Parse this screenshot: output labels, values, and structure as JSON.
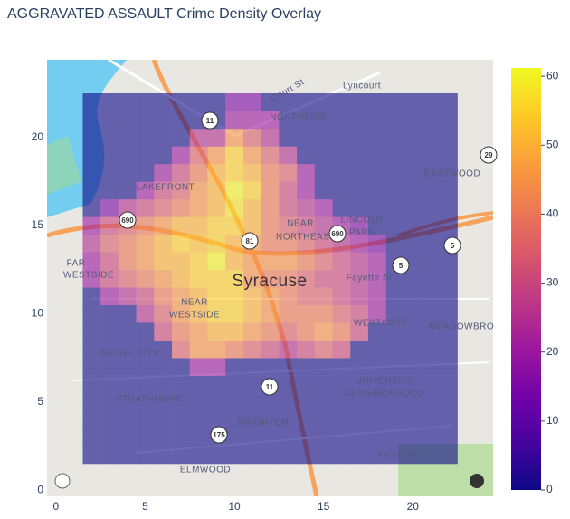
{
  "chart_data": {
    "type": "heatmap",
    "title": "AGGRAVATED ASSAULT Crime Density Overlay",
    "x": [
      2,
      3,
      4,
      5,
      6,
      7,
      8,
      9,
      10,
      11,
      12,
      13,
      14,
      15,
      16,
      17,
      18,
      19,
      20,
      21,
      22
    ],
    "y": [
      2,
      3,
      4,
      5,
      6,
      7,
      8,
      9,
      10,
      11,
      12,
      13,
      14,
      15,
      16,
      17,
      18,
      19,
      20,
      21,
      22
    ],
    "z": [
      [
        0,
        0,
        0,
        0,
        0,
        0,
        0,
        0,
        0,
        0,
        0,
        0,
        0,
        0,
        0,
        0,
        0,
        0,
        0,
        0,
        0
      ],
      [
        0,
        0,
        0,
        0,
        0,
        0,
        0,
        0,
        0,
        0,
        0,
        0,
        0,
        0,
        0,
        0,
        0,
        0,
        0,
        0,
        0
      ],
      [
        0,
        0,
        0,
        0,
        0,
        0,
        0,
        0,
        0,
        0,
        0,
        0,
        0,
        0,
        0,
        0,
        0,
        0,
        0,
        0,
        0
      ],
      [
        0,
        0,
        0,
        0,
        0,
        0,
        0,
        0,
        0,
        0,
        0,
        0,
        0,
        0,
        0,
        0,
        0,
        0,
        0,
        0,
        0
      ],
      [
        0,
        0,
        0,
        0,
        0,
        0,
        0,
        0,
        0,
        0,
        0,
        0,
        0,
        0,
        0,
        0,
        0,
        0,
        0,
        0,
        0
      ],
      [
        0,
        0,
        0,
        0,
        0,
        0,
        20,
        20,
        0,
        0,
        0,
        0,
        0,
        0,
        0,
        0,
        0,
        0,
        0,
        0,
        0
      ],
      [
        0,
        0,
        0,
        0,
        0,
        35,
        45,
        45,
        40,
        35,
        30,
        25,
        30,
        35,
        30,
        0,
        0,
        0,
        0,
        0,
        0
      ],
      [
        0,
        0,
        0,
        0,
        30,
        40,
        45,
        50,
        50,
        45,
        40,
        35,
        40,
        45,
        40,
        30,
        0,
        0,
        0,
        0,
        0
      ],
      [
        0,
        0,
        0,
        25,
        35,
        45,
        50,
        55,
        55,
        50,
        45,
        40,
        40,
        40,
        35,
        30,
        20,
        0,
        0,
        0,
        0
      ],
      [
        0,
        20,
        25,
        30,
        40,
        45,
        50,
        55,
        55,
        50,
        45,
        40,
        35,
        35,
        30,
        25,
        20,
        0,
        0,
        0,
        0
      ],
      [
        20,
        30,
        35,
        40,
        45,
        50,
        55,
        55,
        55,
        45,
        40,
        40,
        35,
        30,
        30,
        25,
        20,
        0,
        0,
        0,
        0
      ],
      [
        20,
        30,
        40,
        45,
        50,
        50,
        55,
        60,
        50,
        45,
        45,
        45,
        40,
        35,
        30,
        25,
        20,
        0,
        0,
        0,
        0
      ],
      [
        25,
        35,
        40,
        45,
        50,
        55,
        52,
        55,
        50,
        45,
        40,
        40,
        35,
        30,
        25,
        20,
        15,
        0,
        0,
        0,
        0
      ],
      [
        20,
        30,
        35,
        40,
        45,
        50,
        50,
        55,
        55,
        50,
        40,
        35,
        30,
        25,
        20,
        15,
        0,
        0,
        0,
        0,
        0
      ],
      [
        0,
        15,
        25,
        30,
        35,
        40,
        45,
        50,
        58,
        50,
        40,
        30,
        25,
        20,
        0,
        0,
        0,
        0,
        0,
        0,
        0
      ],
      [
        0,
        0,
        0,
        20,
        30,
        35,
        45,
        50,
        60,
        55,
        40,
        30,
        20,
        0,
        0,
        0,
        0,
        0,
        0,
        0,
        0
      ],
      [
        0,
        0,
        0,
        0,
        20,
        30,
        40,
        50,
        55,
        50,
        40,
        35,
        20,
        0,
        0,
        0,
        0,
        0,
        0,
        0,
        0
      ],
      [
        0,
        0,
        0,
        0,
        0,
        20,
        35,
        45,
        55,
        45,
        35,
        25,
        0,
        0,
        0,
        0,
        0,
        0,
        0,
        0,
        0
      ],
      [
        0,
        0,
        0,
        0,
        0,
        0,
        25,
        25,
        45,
        35,
        25,
        0,
        0,
        0,
        0,
        0,
        0,
        0,
        0,
        0,
        0
      ],
      [
        0,
        0,
        0,
        0,
        0,
        0,
        0,
        0,
        20,
        20,
        20,
        0,
        0,
        0,
        0,
        0,
        0,
        0,
        0,
        0,
        0
      ],
      [
        0,
        0,
        0,
        0,
        0,
        0,
        0,
        0,
        15,
        15,
        0,
        0,
        0,
        0,
        0,
        0,
        0,
        0,
        0,
        0,
        0
      ]
    ],
    "colorscale": [
      "#0d0887",
      "#46039f",
      "#7201a8",
      "#9c179e",
      "#bd3786",
      "#d8576b",
      "#ed7953",
      "#fb9f3a",
      "#fdca26",
      "#f0f921"
    ],
    "opacity": 0.6,
    "xlim": [
      -0.5,
      24.5
    ],
    "ylim": [
      -0.35,
      24.4
    ],
    "xticks": [
      0,
      5,
      10,
      15,
      20
    ],
    "yticks": [
      0,
      5,
      10,
      15,
      20
    ],
    "zlim": [
      0,
      61.2
    ],
    "colorbar_ticks": [
      0,
      10,
      20,
      30,
      40,
      50,
      60
    ],
    "map_labels": [
      "Court St",
      "Lyncourt",
      "NORTHSIDE",
      "LAKEFRONT",
      "EASTWOOD",
      "NEAR",
      "NORTHEAST",
      "LINCOLN",
      "PARK",
      "FAR",
      "WESTSIDE",
      "Syracuse",
      "Fayette St",
      "NEAR",
      "WESTSIDE",
      "WESTCOTT",
      "MEADOWBRO",
      "SKUNK CITY",
      "UNIVERSITY",
      "NEIGHBORHOOD",
      "STRATHMORE",
      "BRIGHTON",
      "SKYTOP",
      "ELMWOOD"
    ],
    "shields": [
      "11",
      "690",
      "81",
      "690",
      "5",
      "5",
      "29",
      "11",
      "175"
    ]
  }
}
